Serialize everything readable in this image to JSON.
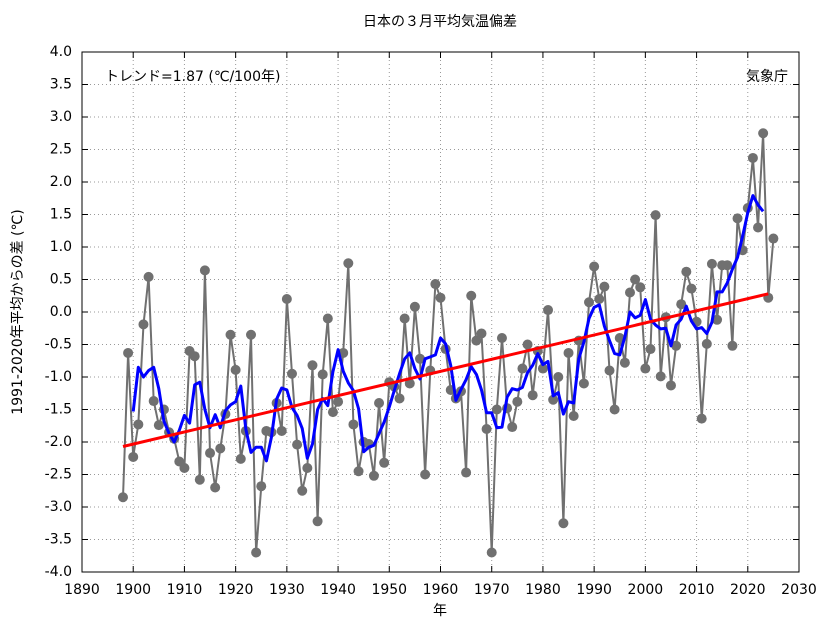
{
  "chart_data": {
    "type": "line",
    "title": "日本の３月平均気温偏差",
    "annotations": [
      "トレンド=1.87 (℃/100年)",
      "気象庁"
    ],
    "xlabel": "年",
    "ylabel": "1991-2020年平均からの差 (℃)",
    "x": [
      1898,
      1899,
      1900,
      1901,
      1902,
      1903,
      1904,
      1905,
      1906,
      1907,
      1908,
      1909,
      1910,
      1911,
      1912,
      1913,
      1914,
      1915,
      1916,
      1917,
      1918,
      1919,
      1920,
      1921,
      1922,
      1923,
      1924,
      1925,
      1926,
      1927,
      1928,
      1929,
      1930,
      1931,
      1932,
      1933,
      1934,
      1935,
      1936,
      1937,
      1938,
      1939,
      1940,
      1941,
      1942,
      1943,
      1944,
      1945,
      1946,
      1947,
      1948,
      1949,
      1950,
      1951,
      1952,
      1953,
      1954,
      1955,
      1956,
      1957,
      1958,
      1959,
      1960,
      1961,
      1962,
      1963,
      1964,
      1965,
      1966,
      1967,
      1968,
      1969,
      1970,
      1971,
      1972,
      1973,
      1974,
      1975,
      1976,
      1977,
      1978,
      1979,
      1980,
      1981,
      1982,
      1983,
      1984,
      1985,
      1986,
      1987,
      1988,
      1989,
      1990,
      1991,
      1992,
      1993,
      1994,
      1995,
      1996,
      1997,
      1998,
      1999,
      2000,
      2001,
      2002,
      2003,
      2004,
      2005,
      2006,
      2007,
      2008,
      2009,
      2010,
      2011,
      2012,
      2013,
      2014,
      2015,
      2016,
      2017,
      2018,
      2019,
      2020,
      2021,
      2022,
      2023,
      2024,
      2025
    ],
    "series": [
      {
        "color": "#707070",
        "marker": true,
        "values": [
          -2.85,
          -0.63,
          -2.23,
          -1.73,
          -0.19,
          0.54,
          -1.37,
          -1.74,
          -1.5,
          -1.85,
          -1.95,
          -2.3,
          -2.4,
          -0.6,
          -0.68,
          -2.58,
          0.64,
          -2.17,
          -2.7,
          -2.1,
          -1.57,
          -0.35,
          -0.89,
          -2.26,
          -1.83,
          -0.35,
          -3.7,
          -2.68,
          -1.83,
          -1.85,
          -1.4,
          -1.83,
          0.2,
          -0.95,
          -2.04,
          -2.75,
          -2.4,
          -0.82,
          -3.22,
          -0.96,
          -0.1,
          -1.54,
          -1.38,
          -0.63,
          0.75,
          -1.73,
          -2.45,
          -2.0,
          -2.03,
          -2.52,
          -1.4,
          -2.32,
          -1.08,
          -1.15,
          -1.33,
          -0.1,
          -1.1,
          0.08,
          -0.72,
          -2.5,
          -0.9,
          0.43,
          0.22,
          -0.57,
          -1.2,
          -1.33,
          -1.22,
          -2.47,
          0.25,
          -0.44,
          -0.33,
          -1.8,
          -3.7,
          -1.5,
          -0.4,
          -1.48,
          -1.77,
          -1.38,
          -0.87,
          -0.5,
          -1.28,
          -0.6,
          -0.87,
          0.03,
          -1.35,
          -1.0,
          -3.25,
          -0.63,
          -1.6,
          -0.44,
          -1.1,
          0.15,
          0.7,
          0.2,
          0.39,
          -0.9,
          -1.5,
          -0.4,
          -0.78,
          0.3,
          0.5,
          0.38,
          -0.87,
          -0.57,
          1.49,
          -0.99,
          -0.08,
          -1.13,
          -0.52,
          0.12,
          0.62,
          0.36,
          -0.15,
          -1.64,
          -0.49,
          0.74,
          -0.12,
          0.72,
          0.72,
          -0.52,
          1.44,
          0.95,
          1.6,
          2.37,
          1.3,
          2.75,
          0.22,
          1.13
        ]
      },
      {
        "color": "#0000ff",
        "marker": false,
        "values": [
          null,
          null,
          -1.53,
          -0.85,
          -1.0,
          -0.9,
          -0.85,
          -1.18,
          -1.68,
          -1.87,
          -2.0,
          -1.82,
          -1.59,
          -1.71,
          -1.12,
          -1.08,
          -1.5,
          -1.78,
          -1.58,
          -1.78,
          -1.52,
          -1.43,
          -1.38,
          -1.14,
          -1.81,
          -2.16,
          -2.08,
          -2.08,
          -2.29,
          -1.92,
          -1.34,
          -1.17,
          -1.2,
          -1.47,
          -1.59,
          -1.79,
          -2.25,
          -2.03,
          -1.5,
          -1.33,
          -1.44,
          -0.92,
          -0.58,
          -0.91,
          -1.09,
          -1.21,
          -1.49,
          -2.15,
          -2.08,
          -2.05,
          -1.87,
          -1.69,
          -1.46,
          -1.2,
          -0.95,
          -0.72,
          -0.63,
          -0.87,
          -1.03,
          -0.72,
          -0.69,
          -0.66,
          -0.4,
          -0.49,
          -0.82,
          -1.36,
          -1.19,
          -1.04,
          -0.84,
          -0.96,
          -1.2,
          -1.55,
          -1.55,
          -1.78,
          -1.77,
          -1.31,
          -1.18,
          -1.2,
          -1.16,
          -0.93,
          -0.82,
          -0.64,
          -0.81,
          -0.76,
          -1.29,
          -1.24,
          -1.57,
          -1.38,
          -1.4,
          -0.72,
          -0.46,
          -0.1,
          0.07,
          0.11,
          -0.22,
          -0.44,
          -0.64,
          -0.66,
          -0.38,
          0.0,
          -0.09,
          -0.05,
          0.19,
          -0.11,
          -0.2,
          -0.26,
          -0.25,
          -0.52,
          -0.2,
          -0.11,
          0.09,
          -0.14,
          -0.26,
          -0.24,
          -0.33,
          -0.16,
          0.31,
          0.31,
          0.45,
          0.66,
          0.84,
          1.17,
          1.53,
          1.79,
          1.65,
          1.55,
          null,
          null
        ]
      }
    ],
    "trend": {
      "color": "#ff0000",
      "x": [
        1898,
        2024
      ],
      "values": [
        -2.07,
        0.28
      ]
    },
    "xlim": [
      1890,
      2030
    ],
    "xticks": [
      1890,
      1900,
      1910,
      1920,
      1930,
      1940,
      1950,
      1960,
      1970,
      1980,
      1990,
      2000,
      2010,
      2020,
      2030
    ],
    "ylim": [
      -4.0,
      4.0
    ],
    "yticks": [
      {
        "value": -4.0,
        "label": "-4.0"
      },
      {
        "value": -3.5,
        "label": "-3.5"
      },
      {
        "value": -3.0,
        "label": "-3.0"
      },
      {
        "value": -2.5,
        "label": "-2.5"
      },
      {
        "value": -2.0,
        "label": "-2.0"
      },
      {
        "value": -1.5,
        "label": "-1.5"
      },
      {
        "value": -1.0,
        "label": "-1.0"
      },
      {
        "value": -0.5,
        "label": "-0.5"
      },
      {
        "value": 0.0,
        "label": "0.0"
      },
      {
        "value": 0.5,
        "label": "0.5"
      },
      {
        "value": 1.0,
        "label": "1.0"
      },
      {
        "value": 1.5,
        "label": "1.5"
      },
      {
        "value": 2.0,
        "label": "2.0"
      },
      {
        "value": 2.5,
        "label": "2.5"
      },
      {
        "value": 3.0,
        "label": "3.0"
      },
      {
        "value": 3.5,
        "label": "3.5"
      },
      {
        "value": 4.0,
        "label": "4.0"
      }
    ],
    "grid": true
  }
}
